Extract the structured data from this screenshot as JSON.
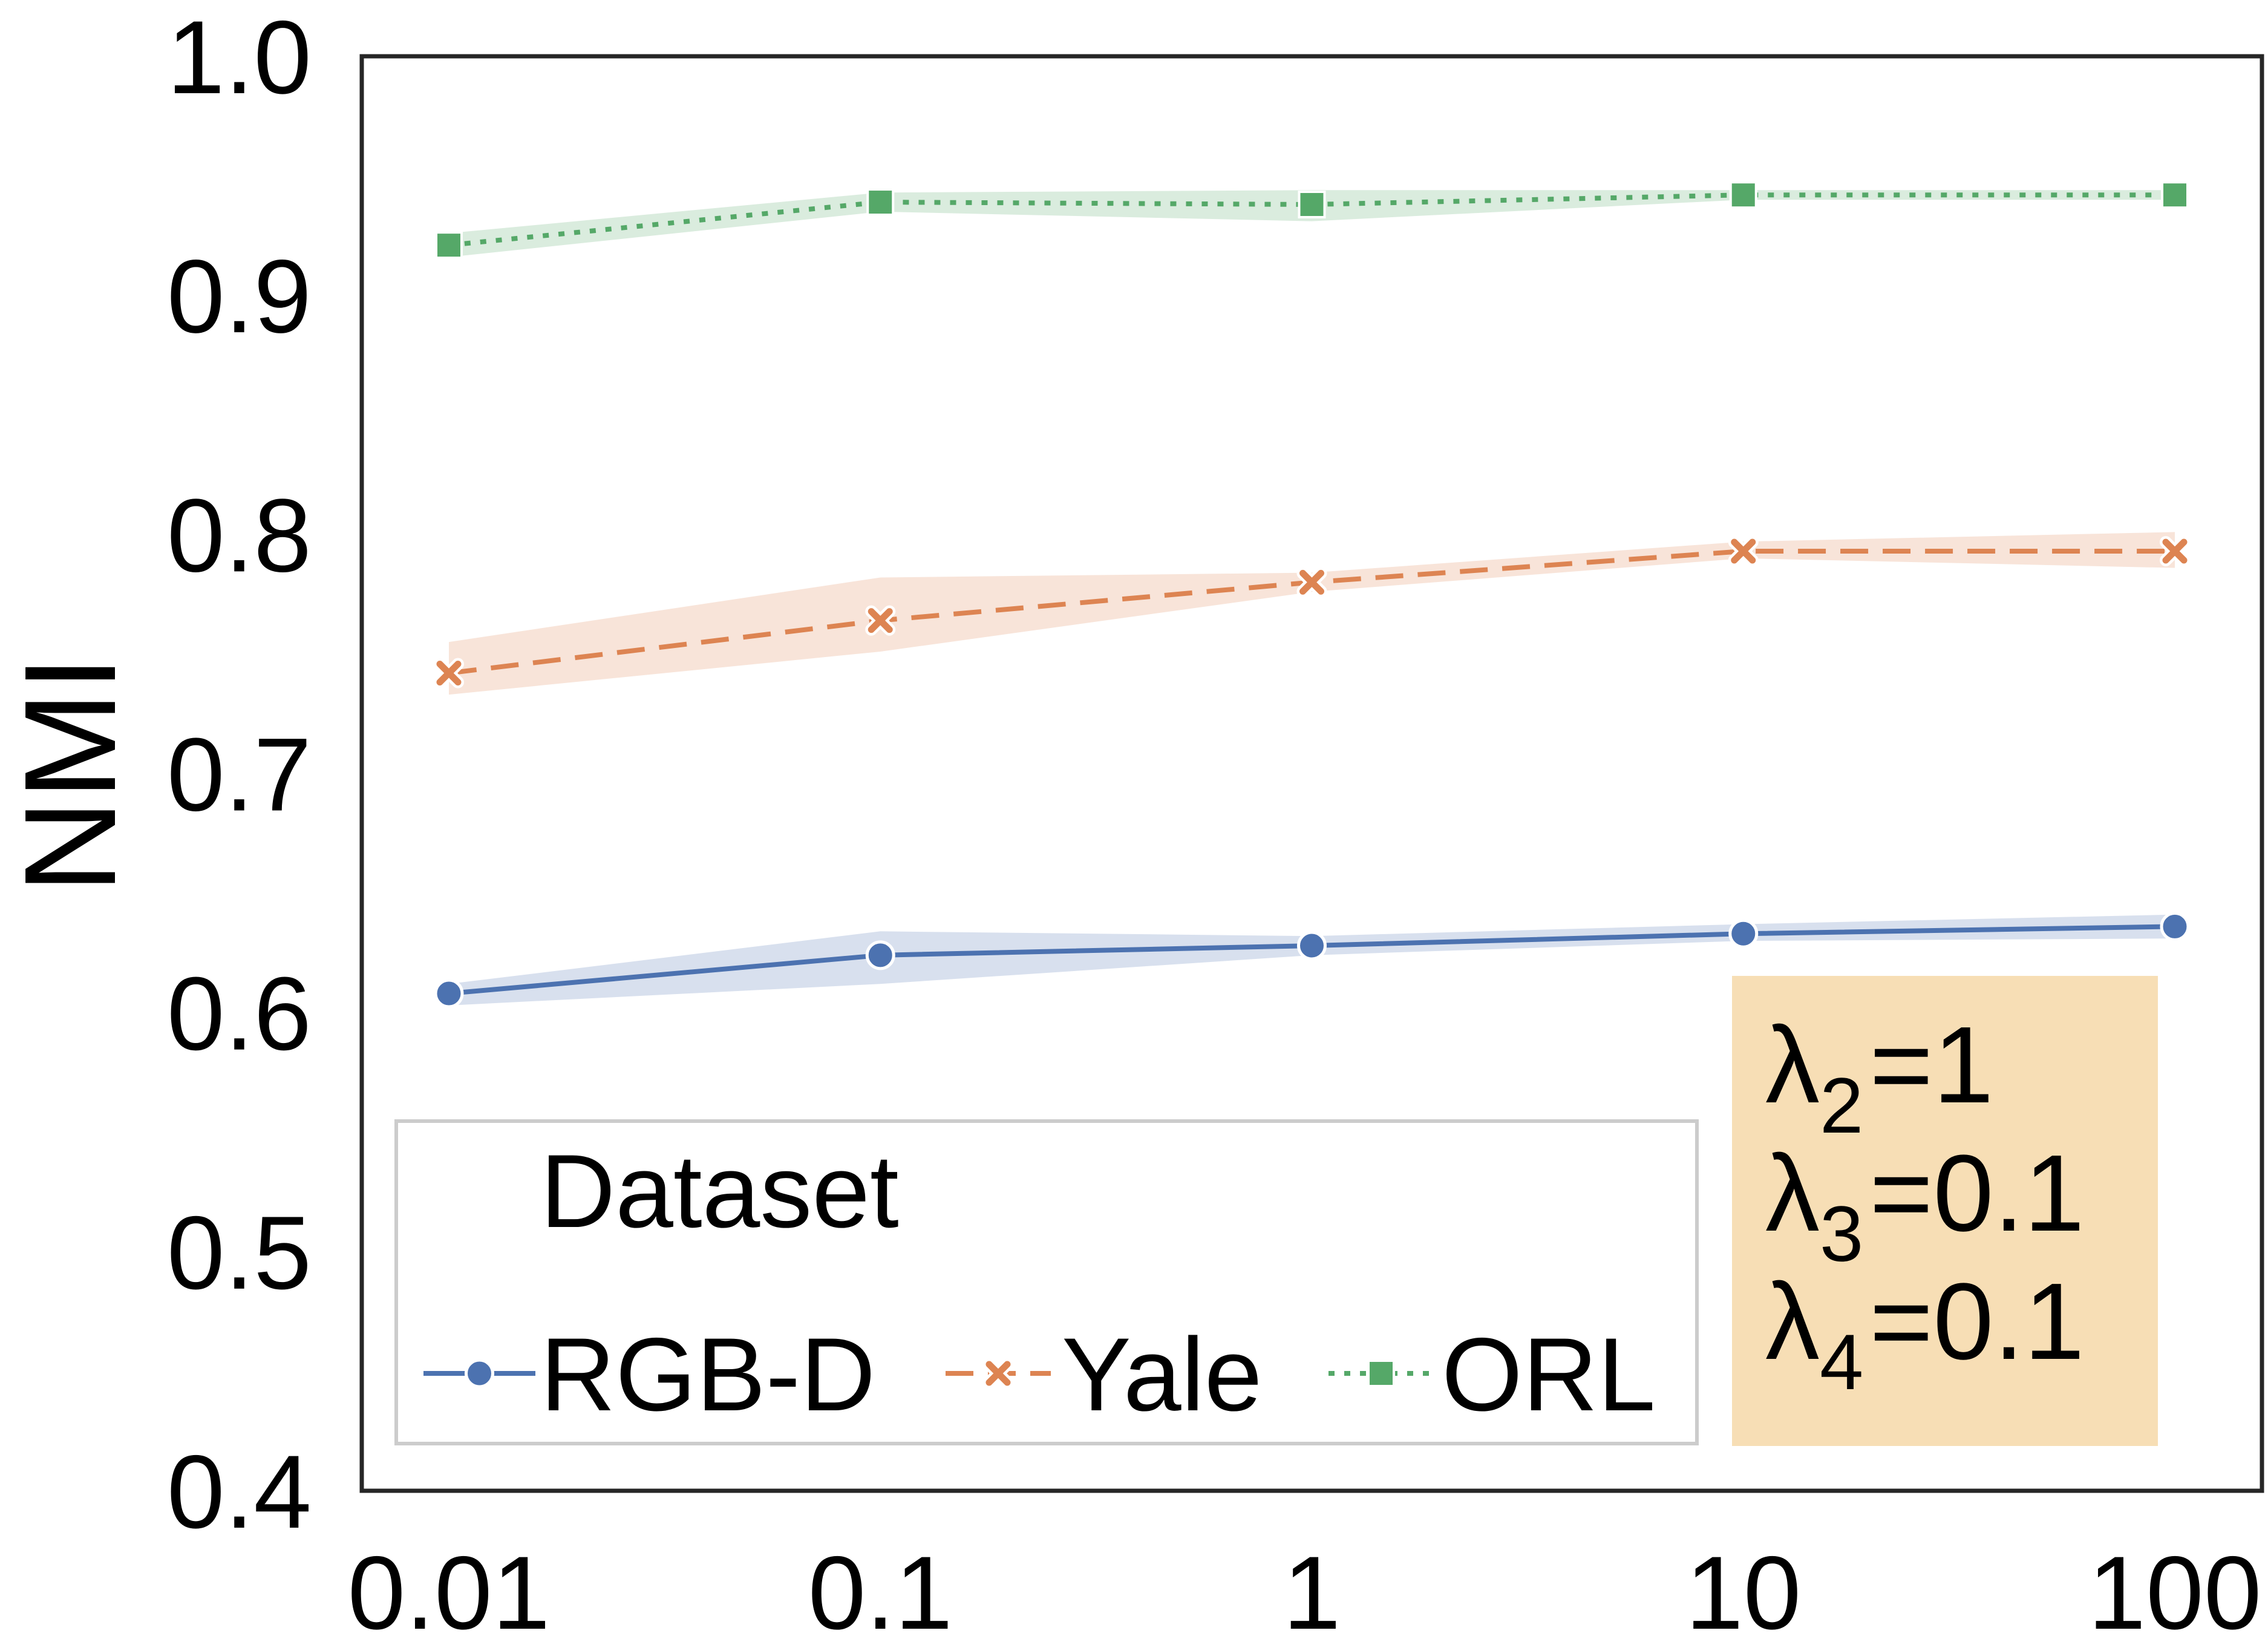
{
  "chart_data": {
    "type": "line",
    "title": "",
    "xlabel": "",
    "ylabel": "NMI",
    "x_scale": "log",
    "x": [
      0.01,
      0.1,
      1,
      10,
      100
    ],
    "x_tick_labels": [
      "0.01",
      "0.1",
      "1",
      "10",
      "100"
    ],
    "ylim": [
      0.4,
      1.0
    ],
    "y_ticks": [
      0.4,
      0.5,
      0.6,
      0.7,
      0.8,
      0.9,
      1.0
    ],
    "y_tick_labels": [
      "0.4",
      "0.5",
      "0.6",
      "0.7",
      "0.8",
      "0.9",
      "1.0"
    ],
    "grid": false,
    "series": [
      {
        "name": "RGB-D",
        "color": "#4c72b0",
        "linestyle": "solid",
        "marker": "circle",
        "values": [
          0.608,
          0.624,
          0.628,
          0.633,
          0.636
        ],
        "band_lower": [
          0.603,
          0.612,
          0.624,
          0.63,
          0.631
        ],
        "band_upper": [
          0.612,
          0.634,
          0.632,
          0.637,
          0.641
        ]
      },
      {
        "name": "Yale",
        "color": "#dd8452",
        "linestyle": "dashed",
        "marker": "x",
        "values": [
          0.742,
          0.764,
          0.78,
          0.793,
          0.793
        ],
        "band_lower": [
          0.733,
          0.751,
          0.776,
          0.79,
          0.786
        ],
        "band_upper": [
          0.755,
          0.782,
          0.784,
          0.797,
          0.801
        ]
      },
      {
        "name": "ORL",
        "color": "#55a868",
        "linestyle": "dotted",
        "marker": "square",
        "values": [
          0.921,
          0.939,
          0.938,
          0.942,
          0.942
        ],
        "band_lower": [
          0.916,
          0.935,
          0.931,
          0.94,
          0.94
        ],
        "band_upper": [
          0.926,
          0.943,
          0.944,
          0.944,
          0.944
        ]
      }
    ],
    "legend": {
      "title": "Dataset",
      "placement": "lower-left"
    },
    "annotation": {
      "lines": [
        {
          "prefix": "λ",
          "sub": "2",
          "suffix": "=1"
        },
        {
          "prefix": "λ",
          "sub": "3",
          "suffix": "=0.1"
        },
        {
          "prefix": "λ",
          "sub": "4",
          "suffix": "=0.1"
        }
      ],
      "background": "#f7deb5",
      "placement": "lower-right"
    }
  }
}
